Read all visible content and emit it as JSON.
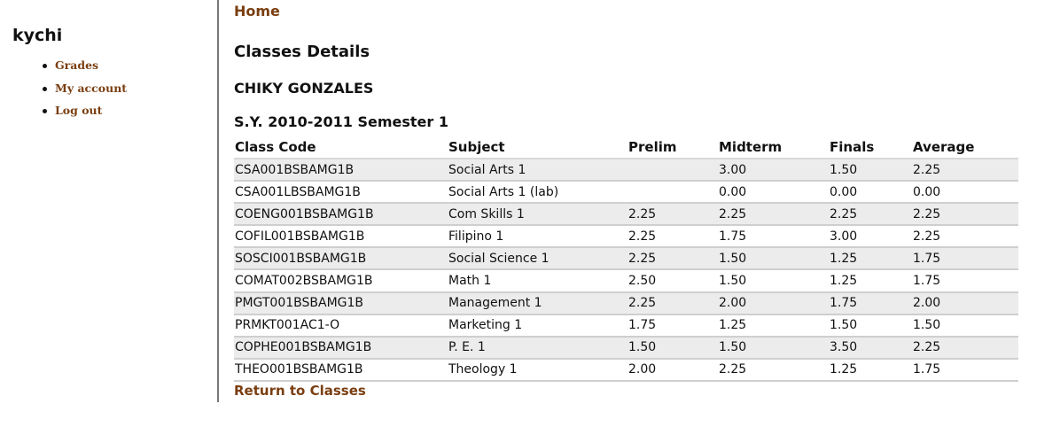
{
  "sidebar": {
    "username": "kychi",
    "items": [
      {
        "label": "Grades"
      },
      {
        "label": "My account"
      },
      {
        "label": "Log out"
      }
    ]
  },
  "main": {
    "home_link": "Home",
    "page_title": "Classes Details",
    "student_name": "CHIKY GONZALES",
    "term": "S.Y. 2010-2011 Semester 1",
    "return_link": "Return to Classes"
  },
  "table": {
    "headers": [
      "Class Code",
      "Subject",
      "Prelim",
      "Midterm",
      "Finals",
      "Average"
    ],
    "rows": [
      [
        "CSA001BSBAMG1B",
        "Social Arts 1",
        "",
        "3.00",
        "1.50",
        "2.25"
      ],
      [
        "CSA001LBSBAMG1B",
        "Social Arts 1 (lab)",
        "",
        "0.00",
        "0.00",
        "0.00"
      ],
      [
        "COENG001BSBAMG1B",
        "Com Skills 1",
        "2.25",
        "2.25",
        "2.25",
        "2.25"
      ],
      [
        "COFIL001BSBAMG1B",
        "Filipino 1",
        "2.25",
        "1.75",
        "3.00",
        "2.25"
      ],
      [
        "SOSCI001BSBAMG1B",
        "Social Science 1",
        "2.25",
        "1.50",
        "1.25",
        "1.75"
      ],
      [
        "COMAT002BSBAMG1B",
        "Math 1",
        "2.50",
        "1.50",
        "1.25",
        "1.75"
      ],
      [
        "PMGT001BSBAMG1B",
        "Management 1",
        "2.25",
        "2.00",
        "1.75",
        "2.00"
      ],
      [
        "PRMKT001AC1-O",
        "Marketing 1",
        "1.75",
        "1.25",
        "1.50",
        "1.50"
      ],
      [
        "COPHE001BSBAMG1B",
        "P. E. 1",
        "1.50",
        "1.50",
        "3.50",
        "2.25"
      ],
      [
        "THEO001BSBAMG1B",
        "Theology 1",
        "2.00",
        "2.25",
        "1.25",
        "1.75"
      ]
    ]
  },
  "colors": {
    "link": "#7a3e10",
    "row_alt": "#ececec",
    "divider": "#777777"
  }
}
